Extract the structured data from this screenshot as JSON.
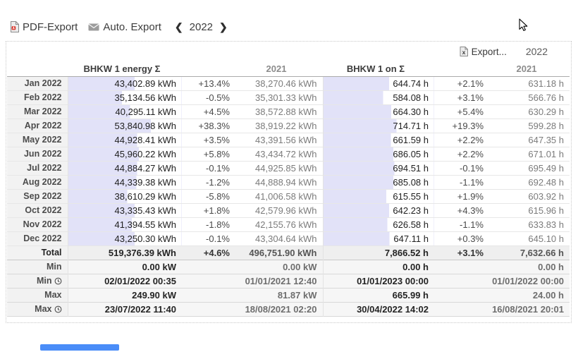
{
  "colors": {
    "bar": "#e2e2f8",
    "scrollbar": "#4a8df8"
  },
  "toolbar": {
    "pdf_export": "PDF-Export",
    "auto_export": "Auto. Export",
    "prev": "❮",
    "year": "2022",
    "next": "❯"
  },
  "panel": {
    "export_label": "Export...",
    "year": "2022"
  },
  "table": {
    "headers": {
      "energy": "BHKW 1 energy Σ",
      "energy_prev": "2021",
      "hours": "BHKW 1 on Σ",
      "hours_prev": "2021"
    },
    "bar_max": {
      "energy": 73800,
      "hours": 1080
    },
    "rows": [
      {
        "label": "Jan 2022",
        "energy": "43,402.89 kWh",
        "energy_val": 43402.89,
        "energy_pct": "+13.4%",
        "energy_prev": "38,270.46 kWh",
        "hours": "644.74 h",
        "hours_val": 644.74,
        "hours_pct": "+2.1%",
        "hours_prev": "631.18 h"
      },
      {
        "label": "Feb 2022",
        "energy": "35,134.56 kWh",
        "energy_val": 35134.56,
        "energy_pct": "-0.5%",
        "energy_prev": "35,301.33 kWh",
        "hours": "584.08 h",
        "hours_val": 584.08,
        "hours_pct": "+3.1%",
        "hours_prev": "566.76 h"
      },
      {
        "label": "Mar 2022",
        "energy": "40,295.11 kWh",
        "energy_val": 40295.11,
        "energy_pct": "+4.5%",
        "energy_prev": "38,572.88 kWh",
        "hours": "664.30 h",
        "hours_val": 664.3,
        "hours_pct": "+5.4%",
        "hours_prev": "630.29 h"
      },
      {
        "label": "Apr 2022",
        "energy": "53,840.98 kWh",
        "energy_val": 53840.98,
        "energy_pct": "+38.3%",
        "energy_prev": "38,919.22 kWh",
        "hours": "714.71 h",
        "hours_val": 714.71,
        "hours_pct": "+19.3%",
        "hours_prev": "599.28 h"
      },
      {
        "label": "May 2022",
        "energy": "44,928.41 kWh",
        "energy_val": 44928.41,
        "energy_pct": "+3.5%",
        "energy_prev": "43,391.56 kWh",
        "hours": "661.59 h",
        "hours_val": 661.59,
        "hours_pct": "+2.2%",
        "hours_prev": "647.35 h"
      },
      {
        "label": "Jun 2022",
        "energy": "45,960.22 kWh",
        "energy_val": 45960.22,
        "energy_pct": "+5.8%",
        "energy_prev": "43,434.72 kWh",
        "hours": "686.05 h",
        "hours_val": 686.05,
        "hours_pct": "+2.2%",
        "hours_prev": "671.01 h"
      },
      {
        "label": "Jul 2022",
        "energy": "44,884.27 kWh",
        "energy_val": 44884.27,
        "energy_pct": "-0.1%",
        "energy_prev": "44,925.85 kWh",
        "hours": "694.51 h",
        "hours_val": 694.51,
        "hours_pct": "-0.1%",
        "hours_prev": "695.49 h"
      },
      {
        "label": "Aug 2022",
        "energy": "44,339.38 kWh",
        "energy_val": 44339.38,
        "energy_pct": "-1.2%",
        "energy_prev": "44,888.94 kWh",
        "hours": "685.08 h",
        "hours_val": 685.08,
        "hours_pct": "-1.1%",
        "hours_prev": "692.48 h"
      },
      {
        "label": "Sep 2022",
        "energy": "38,610.29 kWh",
        "energy_val": 38610.29,
        "energy_pct": "-5.8%",
        "energy_prev": "41,006.58 kWh",
        "hours": "615.55 h",
        "hours_val": 615.55,
        "hours_pct": "+1.9%",
        "hours_prev": "603.92 h"
      },
      {
        "label": "Oct 2022",
        "energy": "43,335.43 kWh",
        "energy_val": 43335.43,
        "energy_pct": "+1.8%",
        "energy_prev": "42,579.96 kWh",
        "hours": "642.23 h",
        "hours_val": 642.23,
        "hours_pct": "+4.3%",
        "hours_prev": "615.96 h"
      },
      {
        "label": "Nov 2022",
        "energy": "41,394.55 kWh",
        "energy_val": 41394.55,
        "energy_pct": "-1.8%",
        "energy_prev": "42,155.76 kWh",
        "hours": "626.58 h",
        "hours_val": 626.58,
        "hours_pct": "-1.1%",
        "hours_prev": "633.83 h"
      },
      {
        "label": "Dec 2022",
        "energy": "43,250.30 kWh",
        "energy_val": 43250.3,
        "energy_pct": "-0.1%",
        "energy_prev": "43,304.64 kWh",
        "hours": "647.11 h",
        "hours_val": 647.11,
        "hours_pct": "+0.3%",
        "hours_prev": "645.10 h"
      }
    ],
    "total": {
      "label": "Total",
      "energy": "519,376.39 kWh",
      "energy_pct": "+4.6%",
      "energy_prev": "496,751.90 kWh",
      "hours": "7,866.52 h",
      "hours_pct": "+3.1%",
      "hours_prev": "7,632.66 h"
    },
    "stats": [
      {
        "label": "Min",
        "clock": false,
        "energy": "0.00 kW",
        "energy_pct": "",
        "energy_prev": "0.00 kW",
        "hours": "0.00 h",
        "hours_pct": "",
        "hours_prev": "0.00 h"
      },
      {
        "label": "Min",
        "clock": true,
        "energy": "02/01/2022 00:35",
        "energy_pct": "",
        "energy_prev": "01/01/2021 12:40",
        "hours": "01/01/2023 00:00",
        "hours_pct": "",
        "hours_prev": "01/01/2022 00:00"
      },
      {
        "label": "Max",
        "clock": false,
        "energy": "249.90 kW",
        "energy_pct": "",
        "energy_prev": "81.87 kW",
        "hours": "665.99 h",
        "hours_pct": "",
        "hours_prev": "24.00 h"
      },
      {
        "label": "Max",
        "clock": true,
        "energy": "23/07/2022 11:40",
        "energy_pct": "",
        "energy_prev": "18/08/2021 02:20",
        "hours": "30/04/2022 14:02",
        "hours_pct": "",
        "hours_prev": "16/08/2021 20:01"
      }
    ]
  }
}
